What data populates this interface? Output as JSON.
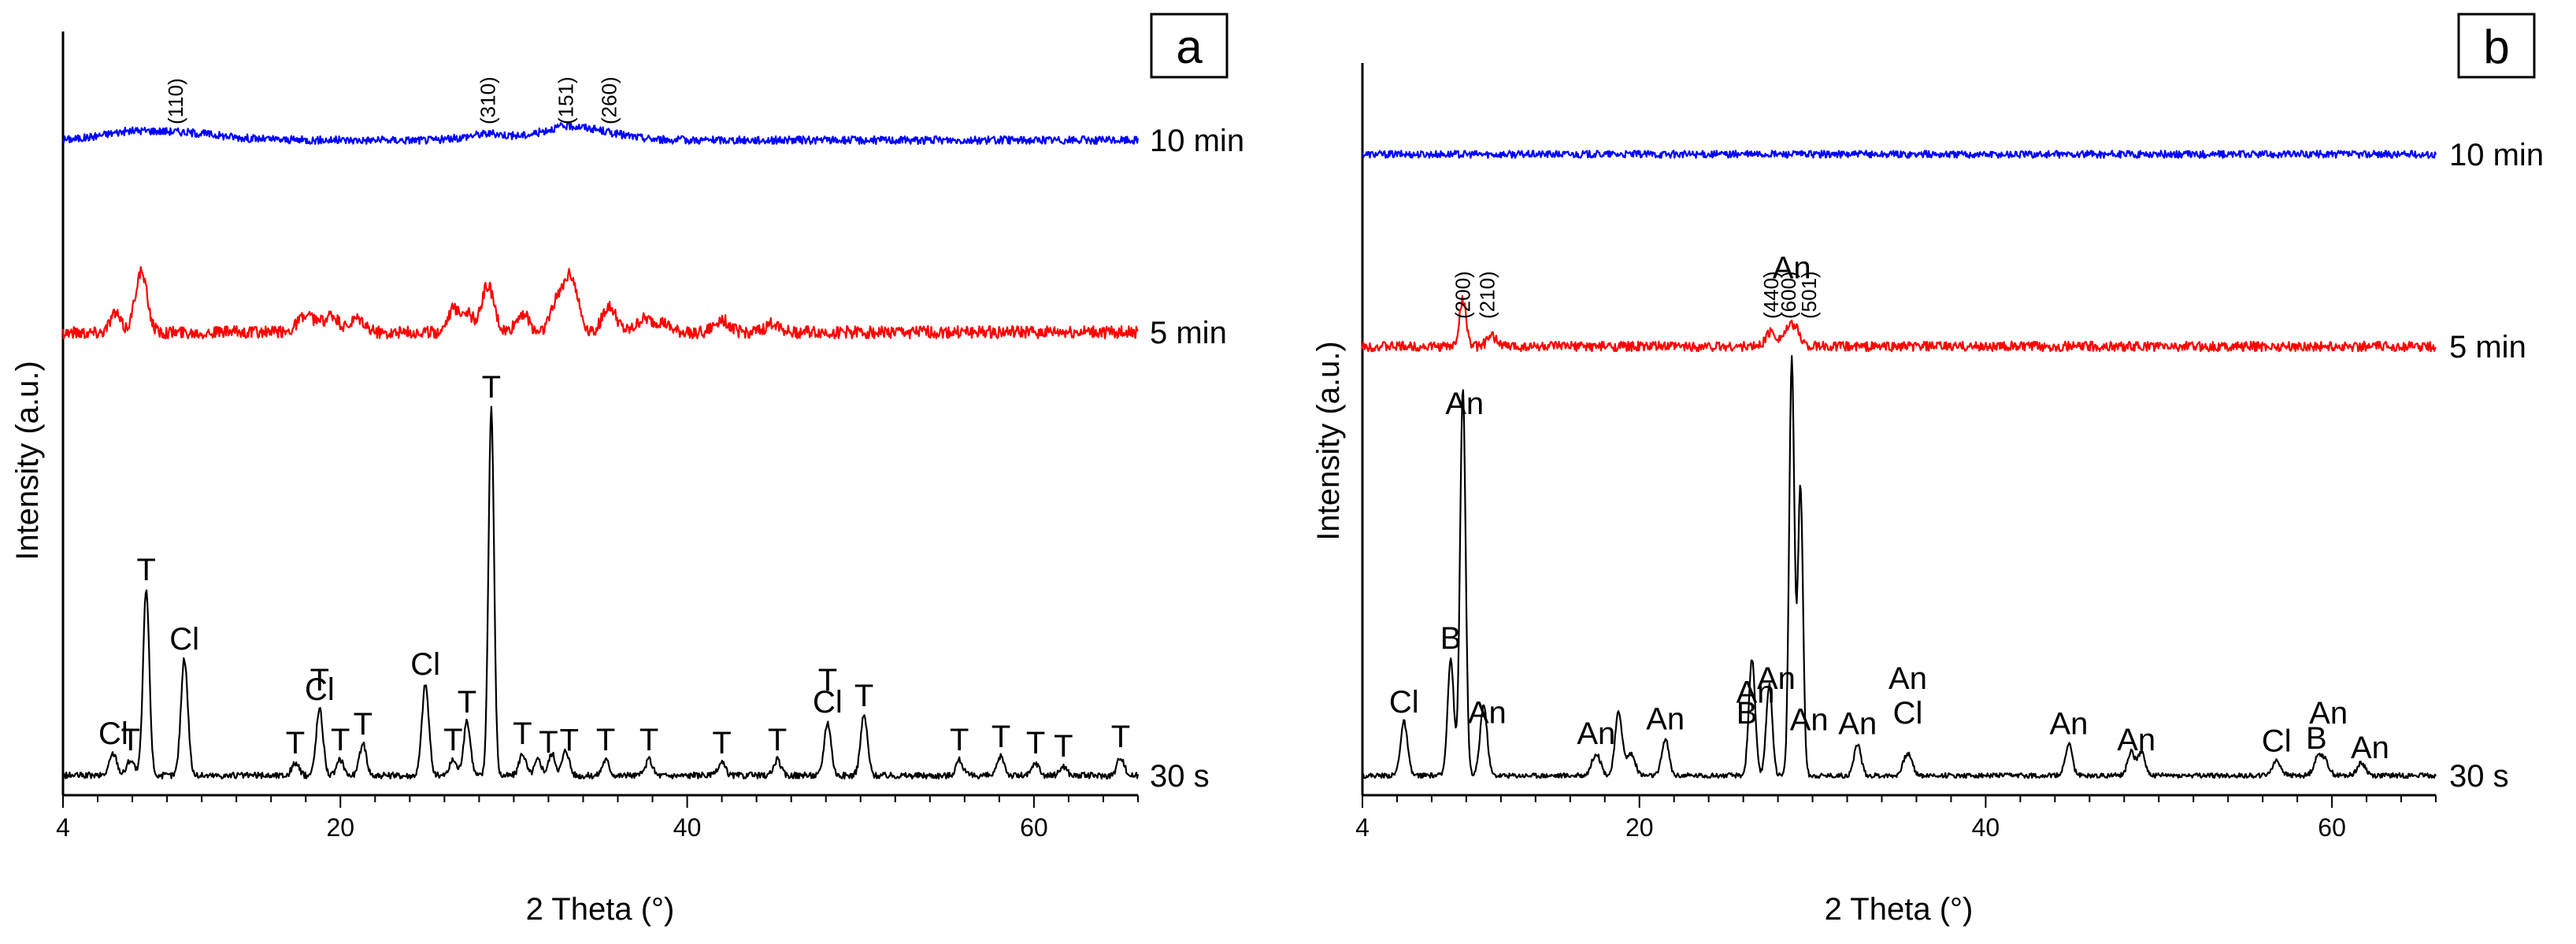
{
  "chart_data": [
    {
      "panel": "a",
      "type": "line",
      "xlabel": "2 Theta (°)",
      "ylabel": "Intensity (a.u.)",
      "xlim": [
        4,
        66
      ],
      "xticks": [
        4,
        20,
        40,
        60
      ],
      "series": [
        {
          "name": "10 min",
          "color": "#0000ff",
          "noise": 2.5,
          "peaks": [
            [
              7.5,
              3,
              1.5
            ],
            [
              10.5,
              5,
              2.5
            ],
            [
              28.5,
              4,
              1.2
            ],
            [
              33,
              8,
              1.5
            ],
            [
              35.5,
              3,
              1.5
            ]
          ],
          "hkl": [
            [
              "(110)",
              10.5
            ],
            [
              "(310)",
              28.5
            ],
            [
              "(151)",
              33
            ],
            [
              "(260)",
              35.5
            ]
          ]
        },
        {
          "name": "5 min",
          "color": "#ff0000",
          "noise": 4,
          "peaks": [
            [
              7,
              12,
              0.3
            ],
            [
              8.5,
              38,
              0.35
            ],
            [
              17.8,
              8,
              0.4
            ],
            [
              18.5,
              6,
              0.4
            ],
            [
              19.5,
              10,
              0.4
            ],
            [
              21,
              8,
              0.4
            ],
            [
              26.5,
              14,
              0.35
            ],
            [
              27.3,
              12,
              0.35
            ],
            [
              28.5,
              30,
              0.35
            ],
            [
              30.5,
              12,
              0.35
            ],
            [
              32.5,
              18,
              0.4
            ],
            [
              33.3,
              35,
              0.4
            ],
            [
              35.5,
              16,
              0.4
            ],
            [
              37.5,
              8,
              0.4
            ],
            [
              38.5,
              6,
              0.4
            ],
            [
              42,
              8,
              0.4
            ],
            [
              45,
              6,
              0.4
            ]
          ],
          "hkl": []
        },
        {
          "name": "30 s",
          "color": "#000000",
          "noise": 2,
          "peaks": [
            [
              6.9,
              14,
              0.22
            ],
            [
              7.9,
              10,
              0.22
            ],
            [
              8.8,
              118,
              0.18
            ],
            [
              11,
              74,
              0.2
            ],
            [
              17.4,
              8,
              0.2
            ],
            [
              18.8,
              42,
              0.2
            ],
            [
              20,
              10,
              0.2
            ],
            [
              21.3,
              20,
              0.2
            ],
            [
              24.9,
              58,
              0.2
            ],
            [
              26.5,
              10,
              0.2
            ],
            [
              27.3,
              34,
              0.2
            ],
            [
              28.7,
              234,
              0.16
            ],
            [
              30.5,
              14,
              0.2
            ],
            [
              31.4,
              10,
              0.2
            ],
            [
              32.2,
              14,
              0.2
            ],
            [
              33,
              16,
              0.2
            ],
            [
              35.3,
              10,
              0.2
            ],
            [
              37.8,
              10,
              0.2
            ],
            [
              42,
              8,
              0.2
            ],
            [
              45.2,
              10,
              0.2
            ],
            [
              48.1,
              34,
              0.2
            ],
            [
              50.2,
              38,
              0.2
            ],
            [
              55.7,
              10,
              0.2
            ],
            [
              58.1,
              12,
              0.2
            ],
            [
              60.1,
              8,
              0.2
            ],
            [
              61.7,
              6,
              0.2
            ],
            [
              65,
              12,
              0.2
            ]
          ]
        }
      ],
      "peak_labels": [
        {
          "text": "Cl",
          "x": 6.9,
          "row": 0
        },
        {
          "text": "T",
          "x": 7.9,
          "row": 0
        },
        {
          "text": "T",
          "x": 8.8,
          "row": 2
        },
        {
          "text": "Cl",
          "x": 11,
          "row": 1
        },
        {
          "text": "T",
          "x": 17.4,
          "row": 0
        },
        {
          "text": "T",
          "x": 18.8,
          "row": 2
        },
        {
          "text": "Cl",
          "x": 18.8,
          "row": 1
        },
        {
          "text": "T",
          "x": 20,
          "row": 0
        },
        {
          "text": "T",
          "x": 21.3,
          "row": 0
        },
        {
          "text": "Cl",
          "x": 24.9,
          "row": 1
        },
        {
          "text": "T",
          "x": 26.5,
          "row": 0
        },
        {
          "text": "T",
          "x": 27.3,
          "row": 1
        },
        {
          "text": "T",
          "x": 28.7,
          "row": 3
        },
        {
          "text": "T",
          "x": 30.5,
          "row": 0
        },
        {
          "text": "T",
          "x": 32,
          "row": 0
        },
        {
          "text": "T",
          "x": 33.2,
          "row": 0
        },
        {
          "text": "T",
          "x": 35.3,
          "row": 0
        },
        {
          "text": "T",
          "x": 37.8,
          "row": 0
        },
        {
          "text": "T",
          "x": 42,
          "row": 0
        },
        {
          "text": "T",
          "x": 45.2,
          "row": 0
        },
        {
          "text": "T",
          "x": 48.1,
          "row": 2
        },
        {
          "text": "Cl",
          "x": 48.1,
          "row": 1
        },
        {
          "text": "T",
          "x": 50.2,
          "row": 1
        },
        {
          "text": "T",
          "x": 55.7,
          "row": 0
        },
        {
          "text": "T",
          "x": 58.1,
          "row": 0
        },
        {
          "text": "T",
          "x": 60.1,
          "row": 0
        },
        {
          "text": "T",
          "x": 61.7,
          "row": 0
        },
        {
          "text": "T",
          "x": 65,
          "row": 0
        }
      ]
    },
    {
      "panel": "b",
      "type": "line",
      "xlabel": "2 Theta (°)",
      "ylabel": "Intensity (a.u.)",
      "xlim": [
        4,
        66
      ],
      "xticks": [
        4,
        20,
        40,
        60
      ],
      "series": [
        {
          "name": "10 min",
          "color": "#0000ff",
          "noise": 3,
          "peaks": [],
          "hkl": []
        },
        {
          "name": "5 min",
          "color": "#ff0000",
          "noise": 4,
          "peaks": [
            [
              9.8,
              38,
              0.2
            ],
            [
              11.5,
              8,
              0.3
            ],
            [
              27.6,
              12,
              0.3
            ],
            [
              28.5,
              10,
              0.3
            ],
            [
              29,
              14,
              0.3
            ]
          ],
          "hkl": [
            [
              "(200)",
              9.8
            ],
            [
              "(210)",
              11.2
            ],
            [
              "(440)",
              27.6
            ],
            [
              "(600)",
              28.6
            ],
            [
              "(501)",
              29.8
            ]
          ]
        },
        {
          "name": "30 s",
          "color": "#000000",
          "noise": 2,
          "peaks": [
            [
              6.4,
              44,
              0.2
            ],
            [
              9.1,
              96,
              0.18
            ],
            [
              9.8,
              316,
              0.16
            ],
            [
              11,
              58,
              0.2
            ],
            [
              17.5,
              18,
              0.25
            ],
            [
              18.8,
              52,
              0.2
            ],
            [
              19.5,
              18,
              0.25
            ],
            [
              21.5,
              30,
              0.2
            ],
            [
              26.5,
              96,
              0.18
            ],
            [
              27.5,
              74,
              0.18
            ],
            [
              28.8,
              342,
              0.15
            ],
            [
              29.3,
              238,
              0.15
            ],
            [
              32.6,
              26,
              0.2
            ],
            [
              35.5,
              18,
              0.25
            ],
            [
              44.8,
              26,
              0.2
            ],
            [
              48.4,
              20,
              0.2
            ],
            [
              49,
              20,
              0.2
            ],
            [
              56.8,
              12,
              0.25
            ],
            [
              59.2,
              14,
              0.25
            ],
            [
              59.6,
              10,
              0.25
            ],
            [
              61.7,
              10,
              0.25
            ]
          ]
        }
      ],
      "peak_labels": [
        {
          "text": "Cl",
          "x": 6.4,
          "row": 0
        },
        {
          "text": "B",
          "x": 9.1,
          "row": 1
        },
        {
          "text": "An",
          "x": 9.9,
          "row": 4
        },
        {
          "text": "An",
          "x": 11.2,
          "row": 1
        },
        {
          "text": "An",
          "x": 17.5,
          "row": 0
        },
        {
          "text": "An",
          "x": 21.5,
          "row": 0
        },
        {
          "text": "B",
          "x": 26.2,
          "row": 1
        },
        {
          "text": "An",
          "x": 26.7,
          "row": 3
        },
        {
          "text": "An",
          "x": 27.9,
          "row": 2
        },
        {
          "text": "An",
          "x": 28.8,
          "row": 5
        },
        {
          "text": "An",
          "x": 29.8,
          "row": 4
        },
        {
          "text": "An",
          "x": 32.6,
          "row": 0
        },
        {
          "text": "An",
          "x": 35.5,
          "row": 2
        },
        {
          "text": "Cl",
          "x": 35.5,
          "row": 1
        },
        {
          "text": "An",
          "x": 44.8,
          "row": 0
        },
        {
          "text": "An",
          "x": 48.7,
          "row": 0
        },
        {
          "text": "Cl",
          "x": 56.8,
          "row": 0
        },
        {
          "text": "B",
          "x": 59.1,
          "row": 0
        },
        {
          "text": "An",
          "x": 59.8,
          "row": 1
        },
        {
          "text": "An",
          "x": 62.2,
          "row": 0
        }
      ]
    }
  ]
}
